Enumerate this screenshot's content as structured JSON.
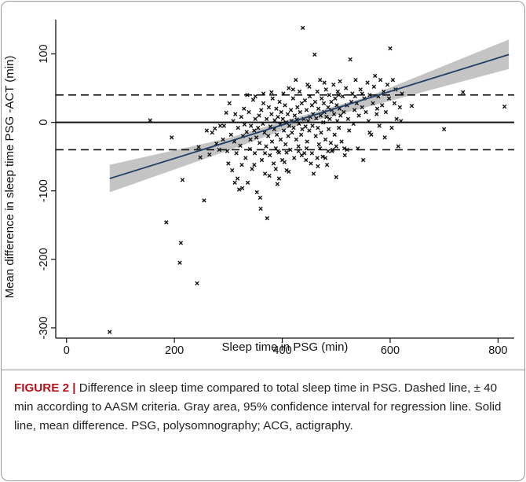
{
  "caption": {
    "label": "FIGURE 2 |",
    "text": " Difference in sleep time compared to total sleep time in PSG. Dashed line, ± 40 min according to AASM criteria. Gray area, 95% confidence interval for regression line. Solid line, mean difference. PSG, polysomnography; ACG, actigraphy."
  },
  "chart_data": {
    "type": "scatter",
    "title": "",
    "xlabel": "Sleep time in PSG (min)",
    "ylabel": "Mean difference in sleep time PSG -ACT (min)",
    "xlim": [
      -20,
      830
    ],
    "ylim": [
      -315,
      150
    ],
    "xticks": [
      0,
      200,
      400,
      600,
      800
    ],
    "yticks": [
      -300,
      -200,
      -100,
      0,
      100
    ],
    "grid": false,
    "marker": "x",
    "colors": {
      "points": "#111111",
      "regression": "#1f3f66",
      "ci_band": "#c4c4c4",
      "reference": "#111111"
    },
    "reference_lines": {
      "mean": 0,
      "limits": [
        -40,
        40
      ]
    },
    "regression": {
      "x": [
        80,
        820
      ],
      "y": [
        -82,
        99
      ]
    },
    "confidence_band": {
      "x": [
        80,
        300,
        420,
        560,
        820
      ],
      "lower": [
        -102,
        -41,
        -6,
        23,
        78
      ],
      "upper": [
        -62,
        -23,
        6,
        38,
        121
      ]
    },
    "points": [
      [
        80,
        -306
      ],
      [
        155,
        3
      ],
      [
        185,
        -146
      ],
      [
        195,
        -22
      ],
      [
        210,
        -205
      ],
      [
        212,
        -176
      ],
      [
        215,
        -84
      ],
      [
        242,
        -235
      ],
      [
        255,
        -114
      ],
      [
        245,
        -36
      ],
      [
        248,
        -51
      ],
      [
        260,
        -12
      ],
      [
        265,
        -47
      ],
      [
        270,
        -15
      ],
      [
        275,
        -9
      ],
      [
        278,
        -31
      ],
      [
        283,
        -40
      ],
      [
        285,
        -5
      ],
      [
        290,
        -25
      ],
      [
        292,
        -5
      ],
      [
        296,
        14
      ],
      [
        298,
        -42
      ],
      [
        300,
        -60
      ],
      [
        302,
        28
      ],
      [
        305,
        -18
      ],
      [
        307,
        -70
      ],
      [
        309,
        2
      ],
      [
        311,
        -28
      ],
      [
        313,
        12
      ],
      [
        315,
        -45
      ],
      [
        317,
        -82
      ],
      [
        318,
        -8
      ],
      [
        320,
        -98
      ],
      [
        322,
        -34
      ],
      [
        324,
        8
      ],
      [
        325,
        -62
      ],
      [
        327,
        -20
      ],
      [
        329,
        20
      ],
      [
        330,
        -3
      ],
      [
        332,
        -52
      ],
      [
        334,
        -14
      ],
      [
        336,
        -88
      ],
      [
        338,
        15
      ],
      [
        340,
        -39
      ],
      [
        341,
        -25
      ],
      [
        342,
        -5
      ],
      [
        344,
        -68
      ],
      [
        346,
        33
      ],
      [
        348,
        -12
      ],
      [
        349,
        -45
      ],
      [
        350,
        5
      ],
      [
        352,
        -22
      ],
      [
        353,
        -102
      ],
      [
        355,
        -8
      ],
      [
        357,
        10
      ],
      [
        358,
        -30
      ],
      [
        360,
        -126
      ],
      [
        361,
        18
      ],
      [
        362,
        -55
      ],
      [
        364,
        -2
      ],
      [
        365,
        28
      ],
      [
        367,
        -15
      ],
      [
        368,
        -75
      ],
      [
        370,
        -35
      ],
      [
        371,
        5
      ],
      [
        372,
        -140
      ],
      [
        374,
        -20
      ],
      [
        375,
        22
      ],
      [
        377,
        -48
      ],
      [
        378,
        -6
      ],
      [
        380,
        12
      ],
      [
        381,
        -28
      ],
      [
        382,
        35
      ],
      [
        384,
        -60
      ],
      [
        385,
        -10
      ],
      [
        386,
        3
      ],
      [
        388,
        -38
      ],
      [
        389,
        20
      ],
      [
        390,
        -18
      ],
      [
        391,
        -90
      ],
      [
        392,
        8
      ],
      [
        394,
        -44
      ],
      [
        395,
        30
      ],
      [
        396,
        -3
      ],
      [
        397,
        -25
      ],
      [
        398,
        15
      ],
      [
        400,
        -55
      ],
      [
        401,
        5
      ],
      [
        402,
        42
      ],
      [
        403,
        -12
      ],
      [
        405,
        25
      ],
      [
        406,
        -32
      ],
      [
        407,
        0
      ],
      [
        408,
        -70
      ],
      [
        410,
        12
      ],
      [
        411,
        -20
      ],
      [
        412,
        50
      ],
      [
        413,
        -5
      ],
      [
        415,
        -40
      ],
      [
        416,
        18
      ],
      [
        417,
        2
      ],
      [
        418,
        -15
      ],
      [
        420,
        35
      ],
      [
        421,
        -8
      ],
      [
        422,
        -52
      ],
      [
        423,
        10
      ],
      [
        425,
        62
      ],
      [
        426,
        -25
      ],
      [
        427,
        4
      ],
      [
        428,
        22
      ],
      [
        430,
        -35
      ],
      [
        431,
        -2
      ],
      [
        432,
        45
      ],
      [
        433,
        15
      ],
      [
        435,
        -18
      ],
      [
        436,
        28
      ],
      [
        437,
        -10
      ],
      [
        438,
        138
      ],
      [
        440,
        5
      ],
      [
        441,
        -45
      ],
      [
        442,
        32
      ],
      [
        443,
        -6
      ],
      [
        445,
        18
      ],
      [
        446,
        -28
      ],
      [
        447,
        55
      ],
      [
        448,
        2
      ],
      [
        450,
        -12
      ],
      [
        451,
        38
      ],
      [
        452,
        8
      ],
      [
        453,
        -60
      ],
      [
        455,
        25
      ],
      [
        456,
        -5
      ],
      [
        457,
        12
      ],
      [
        458,
        -75
      ],
      [
        460,
        99
      ],
      [
        461,
        30
      ],
      [
        462,
        -20
      ],
      [
        463,
        6
      ],
      [
        465,
        45
      ],
      [
        466,
        -8
      ],
      [
        467,
        20
      ],
      [
        468,
        -32
      ],
      [
        470,
        62
      ],
      [
        471,
        10
      ],
      [
        472,
        -15
      ],
      [
        473,
        35
      ],
      [
        475,
        -50
      ],
      [
        476,
        0
      ],
      [
        477,
        28
      ],
      [
        478,
        15
      ],
      [
        480,
        -25
      ],
      [
        481,
        48
      ],
      [
        482,
        8
      ],
      [
        483,
        -62
      ],
      [
        485,
        22
      ],
      [
        486,
        -10
      ],
      [
        487,
        40
      ],
      [
        488,
        5
      ],
      [
        490,
        -30
      ],
      [
        491,
        30
      ],
      [
        492,
        18
      ],
      [
        493,
        -40
      ],
      [
        495,
        55
      ],
      [
        496,
        12
      ],
      [
        497,
        -18
      ],
      [
        498,
        35
      ],
      [
        500,
        -80
      ],
      [
        501,
        25
      ],
      [
        502,
        2
      ],
      [
        503,
        45
      ],
      [
        505,
        -8
      ],
      [
        506,
        20
      ],
      [
        507,
        60
      ],
      [
        508,
        10
      ],
      [
        510,
        -28
      ],
      [
        512,
        38
      ],
      [
        514,
        15
      ],
      [
        516,
        -48
      ],
      [
        518,
        50
      ],
      [
        520,
        25
      ],
      [
        522,
        5
      ],
      [
        524,
        -12
      ],
      [
        526,
        92
      ],
      [
        528,
        30
      ],
      [
        530,
        42
      ],
      [
        532,
        -2
      ],
      [
        534,
        18
      ],
      [
        536,
        62
      ],
      [
        538,
        28
      ],
      [
        540,
        -38
      ],
      [
        542,
        10
      ],
      [
        545,
        48
      ],
      [
        548,
        22
      ],
      [
        550,
        -55
      ],
      [
        552,
        35
      ],
      [
        555,
        15
      ],
      [
        558,
        58
      ],
      [
        560,
        2
      ],
      [
        562,
        40
      ],
      [
        565,
        -18
      ],
      [
        568,
        28
      ],
      [
        570,
        52
      ],
      [
        572,
        68
      ],
      [
        575,
        12
      ],
      [
        578,
        38
      ],
      [
        580,
        -5
      ],
      [
        582,
        62
      ],
      [
        585,
        25
      ],
      [
        588,
        45
      ],
      [
        590,
        -22
      ],
      [
        592,
        15
      ],
      [
        595,
        55
      ],
      [
        598,
        35
      ],
      [
        600,
        108
      ],
      [
        603,
        -8
      ],
      [
        605,
        62
      ],
      [
        608,
        28
      ],
      [
        610,
        48
      ],
      [
        612,
        5
      ],
      [
        615,
        -35
      ],
      [
        618,
        22
      ],
      [
        620,
        2
      ],
      [
        622,
        42
      ],
      [
        640,
        24
      ],
      [
        700,
        -10
      ],
      [
        735,
        44
      ],
      [
        812,
        23
      ],
      [
        430,
        -42
      ],
      [
        445,
        -38
      ],
      [
        455,
        -45
      ],
      [
        470,
        -38
      ],
      [
        485,
        -42
      ],
      [
        500,
        -35
      ],
      [
        515,
        -38
      ],
      [
        335,
        40
      ],
      [
        350,
        38
      ],
      [
        365,
        42
      ],
      [
        380,
        44
      ],
      [
        392,
        -42
      ],
      [
        408,
        -44
      ],
      [
        420,
        48
      ],
      [
        436,
        -48
      ],
      [
        450,
        52
      ],
      [
        465,
        -52
      ],
      [
        478,
        58
      ],
      [
        492,
        -42
      ],
      [
        505,
        40
      ],
      [
        520,
        -40
      ],
      [
        535,
        38
      ],
      [
        548,
        42
      ],
      [
        562,
        -15
      ],
      [
        576,
        20
      ],
      [
        348,
        -62
      ],
      [
        368,
        -45
      ],
      [
        388,
        -68
      ],
      [
        404,
        -58
      ],
      [
        412,
        -72
      ],
      [
        444,
        -55
      ],
      [
        466,
        -64
      ],
      [
        480,
        -52
      ],
      [
        312,
        -88
      ],
      [
        326,
        -96
      ],
      [
        359,
        -110
      ],
      [
        376,
        -78
      ],
      [
        394,
        -82
      ]
    ]
  }
}
